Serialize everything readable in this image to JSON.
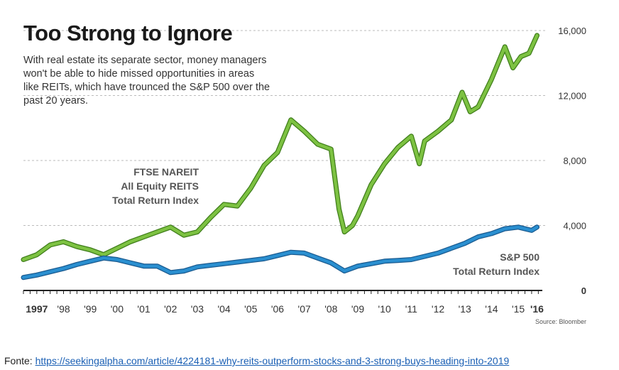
{
  "title": "Too Strong to Ignore",
  "subtitle": "With real estate its separate sector, money managers won't be able to hide missed opportunities in areas like REITs, which have trounced the S&P 500 over the past 20 years.",
  "source": "Source: Bloomber",
  "footer": {
    "prefix": "Fonte:",
    "link_text": "https://seekingalpha.com/article/4224181-why-reits-outperform-stocks-and-3-strong-buys-heading-into-2019"
  },
  "colors": {
    "reit": "#7dc242",
    "reit_edge": "#3f7d1a",
    "sp": "#2a8fd0",
    "sp_edge": "#1a5a8f"
  },
  "chart_data": {
    "type": "line",
    "xlim": [
      1997,
      2016.4
    ],
    "ylim": [
      0,
      16000
    ],
    "yticks": [
      0,
      4000,
      8000,
      12000,
      16000
    ],
    "ytick_labels": [
      "0",
      "4,000",
      "8,000",
      "12,000",
      "16,000"
    ],
    "xticks": [
      1997.5,
      1998.5,
      1999.5,
      2000.5,
      2001.5,
      2002.5,
      2003.5,
      2004.5,
      2005.5,
      2006.5,
      2007.5,
      2008.5,
      2009.5,
      2010.5,
      2011.5,
      2012.5,
      2013.5,
      2014.5,
      2015.5,
      2016.2
    ],
    "xtick_labels": [
      "1997",
      "'98",
      "'99",
      "'00",
      "'01",
      "'02",
      "'03",
      "'04",
      "'05",
      "'06",
      "'07",
      "'08",
      "'09",
      "'10",
      "'11",
      "'12",
      "'13",
      "'14",
      "'15",
      "'16"
    ],
    "series": [
      {
        "name": "FTSE NAREIT All Equity REITS Total Return Index",
        "label_lines": [
          "FTSE NAREIT",
          "All Equity REITS",
          "Total Return Index"
        ],
        "x": [
          1997.0,
          1997.5,
          1998.0,
          1998.5,
          1999.0,
          1999.5,
          2000.0,
          2000.5,
          2001.0,
          2001.5,
          2002.0,
          2002.5,
          2003.0,
          2003.5,
          2004.0,
          2004.5,
          2005.0,
          2005.5,
          2006.0,
          2006.5,
          2007.0,
          2007.5,
          2008.0,
          2008.5,
          2008.8,
          2009.0,
          2009.3,
          2009.5,
          2010.0,
          2010.5,
          2011.0,
          2011.5,
          2011.8,
          2012.0,
          2012.5,
          2013.0,
          2013.4,
          2013.7,
          2014.0,
          2014.5,
          2015.0,
          2015.3,
          2015.6,
          2015.9,
          2016.2
        ],
        "y": [
          1900,
          2200,
          2800,
          3000,
          2700,
          2500,
          2200,
          2600,
          3000,
          3300,
          3600,
          3900,
          3400,
          3600,
          4500,
          5300,
          5200,
          6300,
          7700,
          8500,
          10500,
          9800,
          9000,
          8700,
          5000,
          3600,
          4000,
          4600,
          6500,
          7800,
          8800,
          9500,
          7800,
          9200,
          9800,
          10500,
          12200,
          11000,
          11300,
          13000,
          15000,
          13700,
          14400,
          14600,
          15700
        ]
      },
      {
        "name": "S&P 500 Total Return Index",
        "label_lines": [
          "S&P 500",
          "Total Return Index"
        ],
        "x": [
          1997.0,
          1997.5,
          1998.0,
          1998.5,
          1999.0,
          1999.5,
          2000.0,
          2000.5,
          2001.0,
          2001.5,
          2002.0,
          2002.5,
          2003.0,
          2003.5,
          2004.0,
          2004.5,
          2005.0,
          2005.5,
          2006.0,
          2006.5,
          2007.0,
          2007.5,
          2008.0,
          2008.5,
          2009.0,
          2009.5,
          2010.0,
          2010.5,
          2011.0,
          2011.5,
          2012.0,
          2012.5,
          2013.0,
          2013.5,
          2014.0,
          2014.5,
          2015.0,
          2015.5,
          2016.0,
          2016.2
        ],
        "y": [
          800,
          950,
          1150,
          1350,
          1600,
          1800,
          2000,
          1900,
          1700,
          1500,
          1500,
          1100,
          1200,
          1450,
          1550,
          1650,
          1750,
          1850,
          1950,
          2150,
          2350,
          2300,
          2000,
          1700,
          1200,
          1500,
          1650,
          1800,
          1850,
          1900,
          2100,
          2300,
          2600,
          2900,
          3300,
          3500,
          3800,
          3900,
          3700,
          3900
        ]
      }
    ]
  }
}
